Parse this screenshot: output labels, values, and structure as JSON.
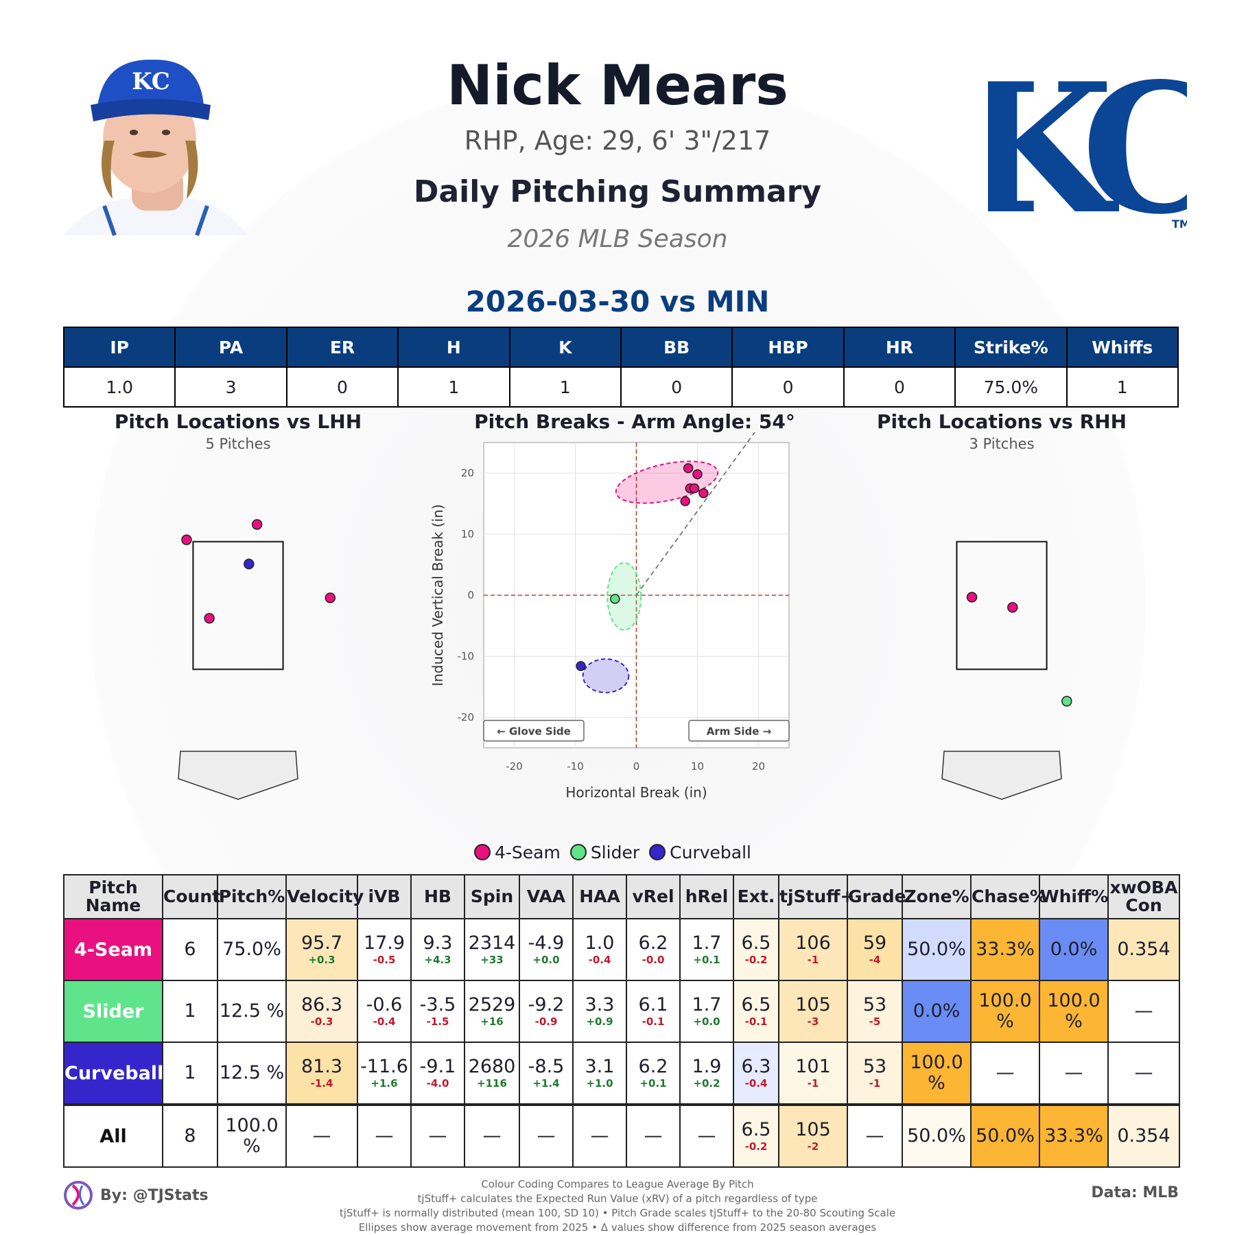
{
  "header": {
    "name": "Nick Mears",
    "bio": "RHP, Age: 29, 6' 3\"/217",
    "summary_title": "Daily Pitching Summary",
    "season": "2026 MLB Season",
    "game": "2026-03-30 vs MIN",
    "team_logo_text": "KC",
    "team_logo_tm": "TM",
    "cap_logo_text": "KC",
    "brand_color": "#0a3d7e"
  },
  "box_score": {
    "headers": [
      "IP",
      "PA",
      "ER",
      "H",
      "K",
      "BB",
      "HBP",
      "HR",
      "Strike%",
      "Whiffs"
    ],
    "values": [
      "1.0",
      "3",
      "0",
      "1",
      "1",
      "0",
      "0",
      "0",
      "75.0%",
      "1"
    ]
  },
  "lhh": {
    "title": "Pitch Locations vs LHH",
    "subtitle": "5 Pitches"
  },
  "rhh": {
    "title": "Pitch Locations vs RHH",
    "subtitle": "3 Pitches"
  },
  "pitch_colors": {
    "4-Seam": "#e8117f",
    "Slider": "#5fe38b",
    "Curveball": "#3526cc"
  },
  "chart_data": [
    {
      "type": "scatter",
      "title": "Pitch Breaks - Arm Angle: 54°",
      "xlabel": "Horizontal Break (in)",
      "ylabel": "Induced Vertical Break (in)",
      "xlim": [
        -25,
        25
      ],
      "ylim": [
        -25,
        25
      ],
      "xticks": [
        -20,
        -10,
        0,
        10,
        20
      ],
      "yticks": [
        20,
        10,
        0,
        -10,
        -20
      ],
      "grid": true,
      "arm_angle_deg": 54,
      "glove_label": "← Glove Side",
      "arm_label": "Arm Side →",
      "series": [
        {
          "name": "4-Seam",
          "points": [
            [
              8.5,
              20.8
            ],
            [
              10.0,
              19.8
            ],
            [
              8.8,
              17.5
            ],
            [
              9.5,
              17.5
            ],
            [
              11.0,
              16.7
            ],
            [
              8.0,
              15.4
            ]
          ]
        },
        {
          "name": "Slider",
          "points": [
            [
              -3.5,
              -0.6
            ]
          ]
        },
        {
          "name": "Curveball",
          "points": [
            [
              -9.1,
              -11.6
            ]
          ]
        }
      ],
      "ellipses": [
        {
          "name": "4-Seam",
          "center": [
            5.0,
            18.5
          ],
          "width": 17,
          "height": 6,
          "angle": -12
        },
        {
          "name": "Slider",
          "center": [
            -2.0,
            -0.2
          ],
          "width": 5.5,
          "height": 11,
          "angle": 0
        },
        {
          "name": "Curveball",
          "center": [
            -5.0,
            -13.2
          ],
          "width": 7.5,
          "height": 5.5,
          "angle": 0
        }
      ]
    },
    {
      "type": "scatter",
      "title": "Pitch Locations vs LHH",
      "xlim": [
        -2.5,
        2.5
      ],
      "ylim": [
        -0.6,
        5.0
      ],
      "strike_zone": {
        "x": [
          -0.83,
          0.83
        ],
        "z": [
          1.5,
          3.5
        ]
      },
      "series": [
        {
          "name": "4-Seam",
          "points": [
            [
              -0.95,
              3.53
            ],
            [
              0.35,
              3.77
            ],
            [
              1.7,
              2.62
            ],
            [
              -0.53,
              2.3
            ]
          ]
        },
        {
          "name": "Curveball",
          "points": [
            [
              0.2,
              3.15
            ]
          ]
        }
      ]
    },
    {
      "type": "scatter",
      "title": "Pitch Locations vs RHH",
      "xlim": [
        -2.5,
        2.5
      ],
      "ylim": [
        -0.6,
        5.0
      ],
      "strike_zone": {
        "x": [
          -0.83,
          0.83
        ],
        "z": [
          1.5,
          3.5
        ]
      },
      "series": [
        {
          "name": "4-Seam",
          "points": [
            [
              -0.55,
              2.63
            ],
            [
              0.2,
              2.47
            ]
          ]
        },
        {
          "name": "Slider",
          "points": [
            [
              1.2,
              1.0
            ]
          ]
        }
      ]
    }
  ],
  "legend": [
    "4-Seam",
    "Slider",
    "Curveball"
  ],
  "pitch_table": {
    "headers": [
      "Pitch Name",
      "Count",
      "Pitch%",
      "Velocity",
      "iVB",
      "HB",
      "Spin",
      "VAA",
      "HAA",
      "vRel",
      "hRel",
      "Ext.",
      "tjStuff+",
      "Grade",
      "Zone%",
      "Chase%",
      "Whiff%",
      "xwOBA Con"
    ],
    "rows": [
      {
        "name": "4-Seam",
        "color": "#e8117f",
        "cells": [
          {
            "v": "6"
          },
          {
            "v": "75.0%"
          },
          {
            "v": "95.7",
            "d": "+0.3",
            "bg": "#fde7b9"
          },
          {
            "v": "17.9",
            "d": "-0.5"
          },
          {
            "v": "9.3",
            "d": "+4.3"
          },
          {
            "v": "2314",
            "d": "+33"
          },
          {
            "v": "-4.9",
            "d": "+0.0"
          },
          {
            "v": "1.0",
            "d": "-0.4"
          },
          {
            "v": "6.2",
            "d": "-0.0"
          },
          {
            "v": "1.7",
            "d": "+0.1"
          },
          {
            "v": "6.5",
            "d": "-0.2",
            "bg": "#fff7e6"
          },
          {
            "v": "106",
            "d": "-1",
            "bg": "#fde7b9"
          },
          {
            "v": "59",
            "d": "-4",
            "bg": "#fde2a8"
          },
          {
            "v": "50.0%",
            "bg": "#d2dcff"
          },
          {
            "v": "33.3%",
            "bg": "#fdb534"
          },
          {
            "v": "0.0%",
            "bg": "#6a8cf5"
          },
          {
            "v": "0.354",
            "bg": "#fde7b9"
          }
        ]
      },
      {
        "name": "Slider",
        "color": "#5fe38b",
        "cells": [
          {
            "v": "1"
          },
          {
            "v": "12.5 %"
          },
          {
            "v": "86.3",
            "d": "-0.3",
            "bg": "#fef0d6"
          },
          {
            "v": "-0.6",
            "d": "-0.4"
          },
          {
            "v": "-3.5",
            "d": "-1.5"
          },
          {
            "v": "2529",
            "d": "+16"
          },
          {
            "v": "-9.2",
            "d": "-0.9"
          },
          {
            "v": "3.3",
            "d": "+0.9"
          },
          {
            "v": "6.1",
            "d": "-0.1"
          },
          {
            "v": "1.7",
            "d": "+0.0"
          },
          {
            "v": "6.5",
            "d": "-0.1",
            "bg": "#fff7e6"
          },
          {
            "v": "105",
            "d": "-3",
            "bg": "#fde7b9"
          },
          {
            "v": "53",
            "d": "-5",
            "bg": "#fef3dd"
          },
          {
            "v": "0.0%",
            "bg": "#6a8cf5"
          },
          {
            "v": "100.0 %",
            "bg": "#fdb534"
          },
          {
            "v": "100.0 %",
            "bg": "#fdb534"
          },
          {
            "v": "—"
          }
        ]
      },
      {
        "name": "Curveball",
        "color": "#3526cc",
        "cells": [
          {
            "v": "1"
          },
          {
            "v": "12.5 %"
          },
          {
            "v": "81.3",
            "d": "-1.4",
            "bg": "#fde2a8"
          },
          {
            "v": "-11.6",
            "d": "+1.6"
          },
          {
            "v": "-9.1",
            "d": "-4.0"
          },
          {
            "v": "2680",
            "d": "+116"
          },
          {
            "v": "-8.5",
            "d": "+1.4"
          },
          {
            "v": "3.1",
            "d": "+1.0"
          },
          {
            "v": "6.2",
            "d": "+0.1"
          },
          {
            "v": "1.9",
            "d": "+0.2"
          },
          {
            "v": "6.3",
            "d": "-0.4",
            "bg": "#e6ebff"
          },
          {
            "v": "101",
            "d": "-1",
            "bg": "#fff7e6"
          },
          {
            "v": "53",
            "d": "-1",
            "bg": "#fef3dd"
          },
          {
            "v": "100.0 %",
            "bg": "#fdb534"
          },
          {
            "v": "—"
          },
          {
            "v": "—"
          },
          {
            "v": "—"
          }
        ]
      },
      {
        "name": "All",
        "color": "#ffffff",
        "dark": true,
        "cells": [
          {
            "v": "8"
          },
          {
            "v": "100.0 %"
          },
          {
            "v": "—"
          },
          {
            "v": "—"
          },
          {
            "v": "—"
          },
          {
            "v": "—"
          },
          {
            "v": "—"
          },
          {
            "v": "—"
          },
          {
            "v": "—"
          },
          {
            "v": "—"
          },
          {
            "v": "6.5",
            "d": "-0.2",
            "bg": "#fff7e6"
          },
          {
            "v": "105",
            "d": "-2",
            "bg": "#fde7b9"
          },
          {
            "v": "—"
          },
          {
            "v": "50.0%",
            "bg": "#fffaf0"
          },
          {
            "v": "50.0%",
            "bg": "#fdb534"
          },
          {
            "v": "33.3%",
            "bg": "#fdb534"
          },
          {
            "v": "0.354",
            "bg": "#fef3dd"
          }
        ]
      }
    ]
  },
  "footer": {
    "by": "By: @TJStats",
    "data": "Data: MLB",
    "notes": [
      "Colour Coding Compares to League Average By Pitch",
      "tjStuff+ calculates the Expected Run Value (xRV) of a pitch regardless of type",
      "tjStuff+ is normally distributed (mean 100, SD 10) • Pitch Grade scales tjStuff+ to the 20-80 Scouting Scale",
      "Ellipses show average movement from 2025 • Δ values show difference from 2025 season averages"
    ]
  }
}
